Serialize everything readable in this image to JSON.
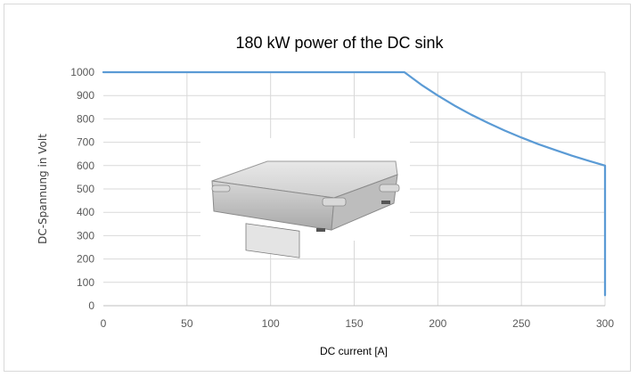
{
  "chart_data": {
    "type": "line",
    "title": "180 kW power of the DC sink",
    "xlabel": "DC current [A]",
    "ylabel": "DC-Spannung in Volt",
    "xlim": [
      0,
      300
    ],
    "ylim": [
      0,
      1000
    ],
    "x_ticks": [
      0,
      50,
      100,
      150,
      200,
      250,
      300
    ],
    "y_ticks": [
      0,
      100,
      200,
      300,
      400,
      500,
      600,
      700,
      800,
      900,
      1000
    ],
    "grid": true,
    "legend": "none",
    "series": [
      {
        "color": "#5b9bd5",
        "x": [
          0,
          180,
          190,
          200,
          210,
          220,
          230,
          240,
          250,
          260,
          270,
          280,
          290,
          300,
          300
        ],
        "y": [
          1000,
          1000,
          947,
          900,
          857,
          818,
          783,
          750,
          720,
          692,
          667,
          643,
          621,
          600,
          45
        ]
      }
    ],
    "inset_image": "dc-sink-device-photo"
  },
  "colors": {
    "line": "#5b9bd5",
    "grid": "#d9d9d9",
    "axis": "#bfbfbf"
  }
}
